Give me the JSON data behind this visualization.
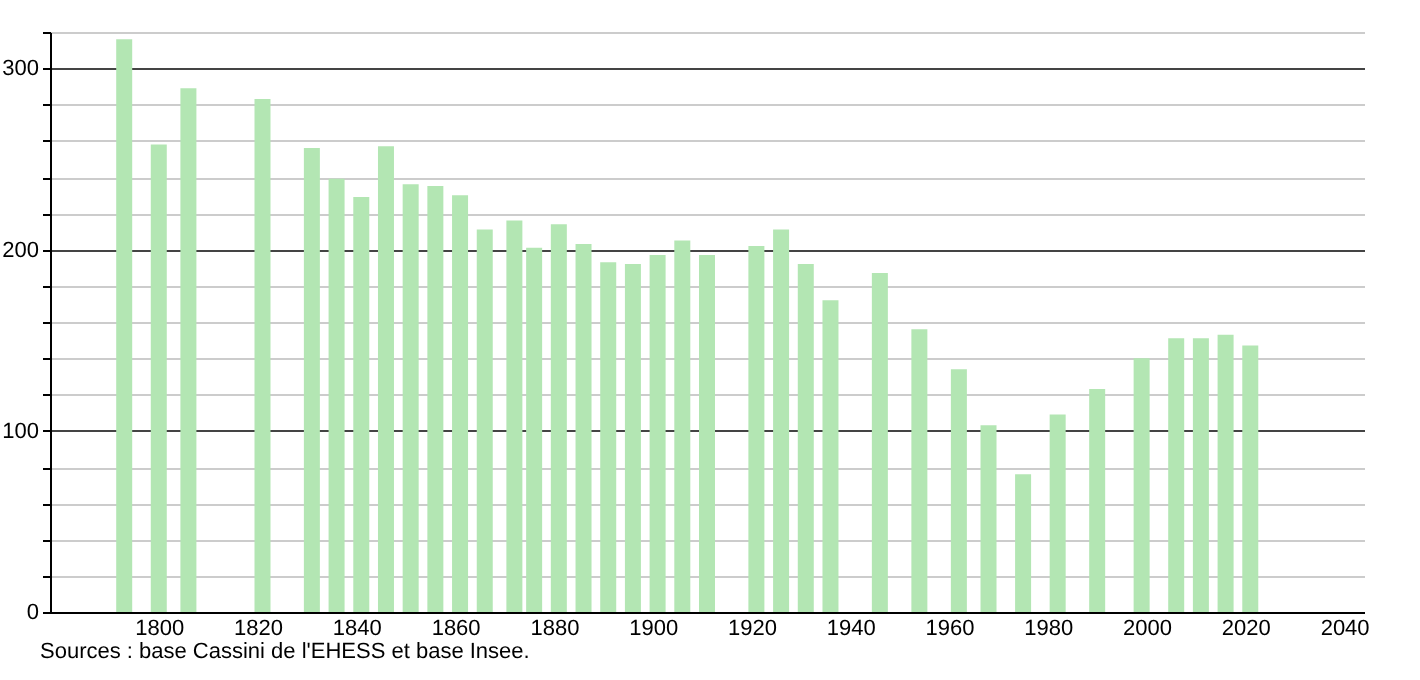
{
  "chart_data": {
    "type": "bar",
    "x": [
      1793,
      1800,
      1806,
      1821,
      1831,
      1836,
      1841,
      1846,
      1851,
      1856,
      1861,
      1866,
      1872,
      1876,
      1881,
      1886,
      1891,
      1896,
      1901,
      1906,
      1911,
      1921,
      1926,
      1931,
      1936,
      1946,
      1954,
      1962,
      1968,
      1975,
      1982,
      1990,
      1999,
      2006,
      2011,
      2016,
      2021
    ],
    "values": [
      316,
      258,
      289,
      283,
      256,
      239,
      229,
      257,
      236,
      235,
      230,
      211,
      216,
      201,
      214,
      203,
      193,
      192,
      197,
      205,
      197,
      202,
      211,
      192,
      172,
      187,
      156,
      134,
      103,
      76,
      109,
      123,
      140,
      151,
      151,
      153,
      147
    ],
    "color": "#b3e6b3",
    "xlim": [
      1780,
      2042
    ],
    "xticks": [
      1800,
      1820,
      1840,
      1860,
      1880,
      1900,
      1920,
      1940,
      1960,
      1980,
      2000,
      2020,
      2040
    ],
    "ylim": [
      0,
      320
    ],
    "yticks": [
      0,
      {
        "value": 20,
        "label": null
      },
      {
        "value": 40,
        "label": null
      },
      {
        "value": 60,
        "label": null
      },
      {
        "value": 80,
        "label": null
      },
      100,
      {
        "value": 120,
        "label": null
      },
      {
        "value": 140,
        "label": null
      },
      {
        "value": 160,
        "label": null
      },
      {
        "value": 180,
        "label": null
      },
      200,
      {
        "value": 220,
        "label": null
      },
      {
        "value": 240,
        "label": null
      },
      {
        "value": 260,
        "label": null
      },
      {
        "value": 280,
        "label": null
      },
      300,
      {
        "value": 320,
        "label": null
      }
    ],
    "grid": "y",
    "annotations": [
      "Sources : base Cassini de l'EHESS et base Insee."
    ]
  }
}
